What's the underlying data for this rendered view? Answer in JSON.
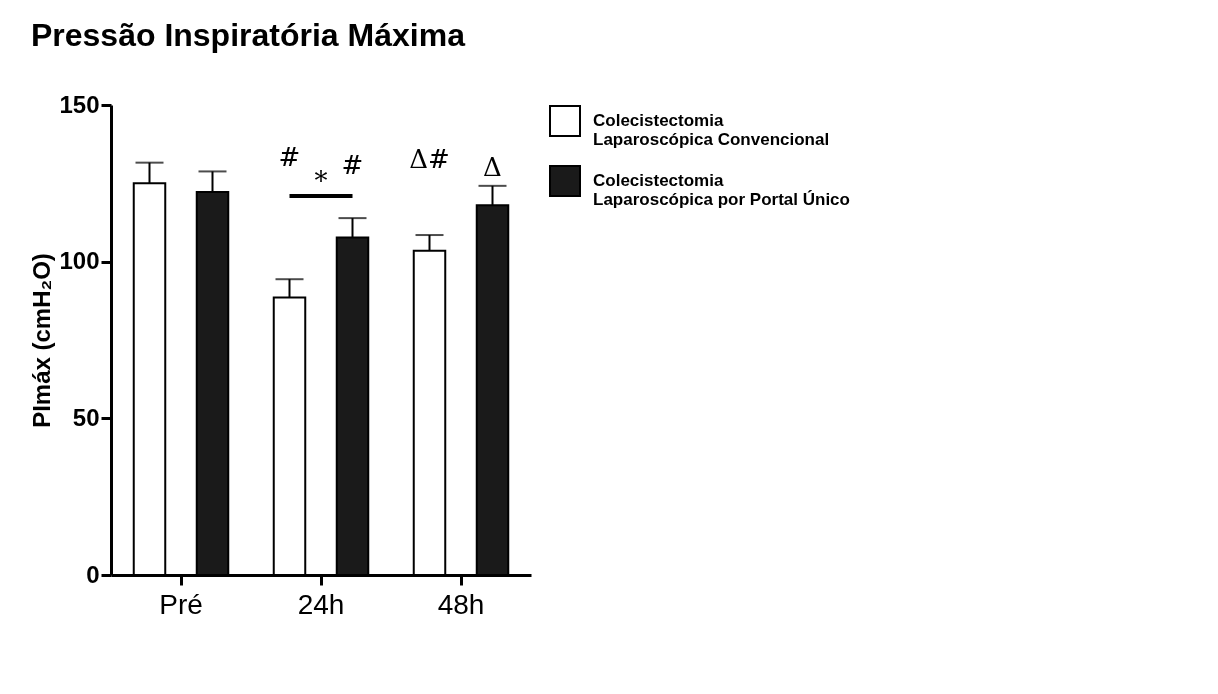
{
  "chart_data": {
    "type": "bar",
    "title": "Pressão Inspiratória Máxima",
    "ylabel": "PImáx (cmH₂O)",
    "categories": [
      "Pré",
      "24h",
      "48h"
    ],
    "series": [
      {
        "name": "Colecistectomia Laparoscópica Convencional",
        "color": "#ffffff",
        "values": [
          125,
          88.6,
          103.5
        ],
        "errors": [
          [
            125,
            131.6
          ],
          [
            88.6,
            94.4
          ],
          [
            103.5,
            108.5
          ]
        ]
      },
      {
        "name": "Colecistectomia Laparoscópica por Portal Único",
        "color": "#1a1a1a",
        "values": [
          122.2,
          107.7,
          118
        ],
        "errors": [
          [
            122.2,
            128.8
          ],
          [
            107.7,
            113.9
          ],
          [
            118,
            124.2
          ]
        ]
      }
    ],
    "ylim": [
      0,
      150
    ],
    "yticks": [
      0,
      50,
      100,
      150
    ],
    "grid": false,
    "legend": "right",
    "annotations": [
      "#",
      "*",
      "#",
      "Δ#",
      "Δ"
    ]
  }
}
